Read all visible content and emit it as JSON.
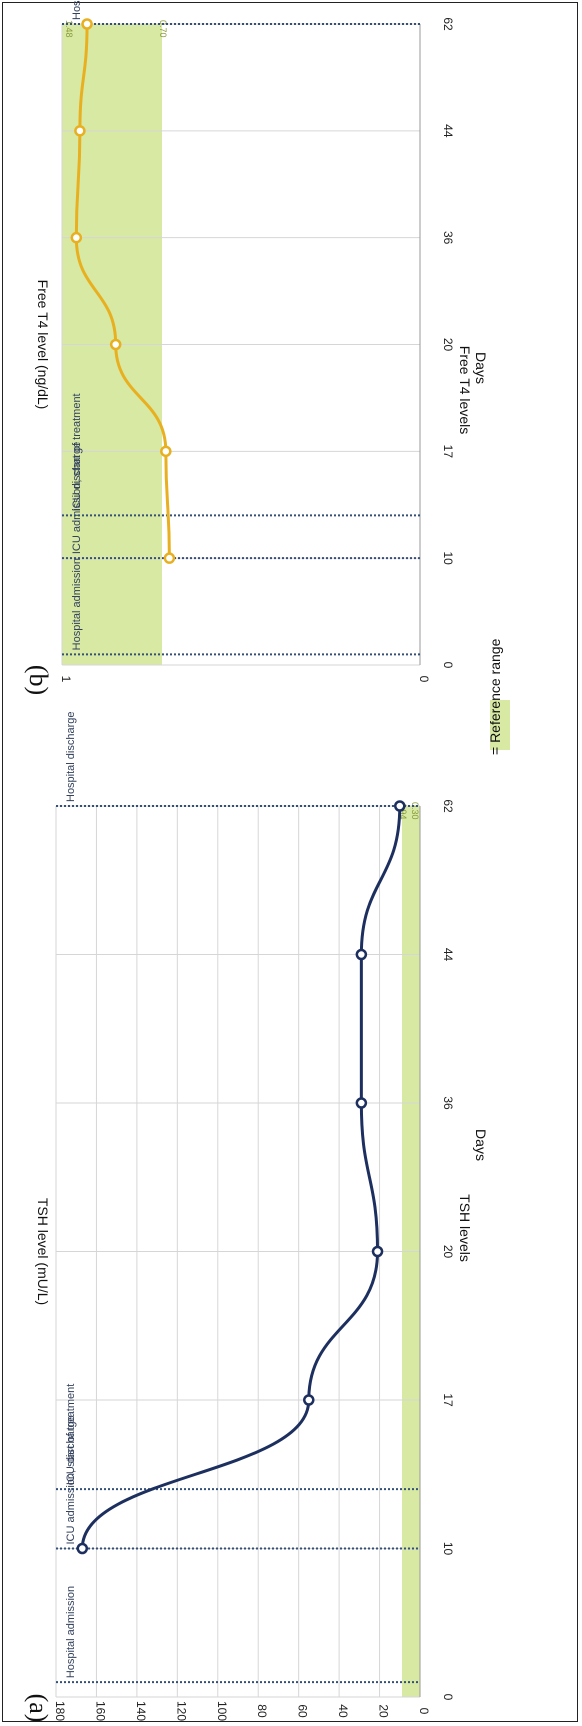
{
  "legend": {
    "label": "= Reference range",
    "color": "#d7e9a3"
  },
  "colors": {
    "tsh_line": "#1c2f5e",
    "ft4_line": "#e8b020",
    "reference": "#d7e9a3",
    "event_line": "#34507a",
    "grid": "#d6d6d6"
  },
  "chart_data": [
    {
      "type": "line",
      "panel_label": "(a)",
      "title": "TSH levels",
      "xlabel": "Days",
      "ylabel": "TSH level (mU/L)",
      "categories": [
        "0",
        "10",
        "17",
        "20",
        "36",
        "44",
        "62"
      ],
      "ylim": [
        0,
        180
      ],
      "yticks": [
        "0",
        "20",
        "40",
        "60",
        "80",
        "100",
        "120",
        "140",
        "160",
        "180"
      ],
      "series": [
        {
          "x": [
            "10",
            "17",
            "20",
            "36",
            "44",
            "62"
          ],
          "values": [
            167,
            55,
            21,
            29,
            29,
            10
          ]
        }
      ],
      "reference_range": {
        "low": 0.3,
        "high": 4.94,
        "low_label": "0.30",
        "high_label": "4.94"
      },
      "events": [
        {
          "label": "Hospital admission",
          "pos": 0.1
        },
        {
          "label": "ICU admission, start of treatment",
          "pos": 1.0
        },
        {
          "label": "ICU discharge",
          "pos": 1.4
        },
        {
          "label": "Hospital discharge",
          "pos": 6.0
        }
      ],
      "grid": true
    },
    {
      "type": "line",
      "panel_label": "(b)",
      "title": "Free T4 levels",
      "xlabel": "Days",
      "ylabel": "Free T4 level (ng/dL)",
      "categories": [
        "0",
        "10",
        "17",
        "20",
        "36",
        "44",
        "62"
      ],
      "ylim": [
        0,
        1
      ],
      "yticks": [
        "0",
        "1"
      ],
      "series": [
        {
          "x": [
            "10",
            "17",
            "20",
            "36",
            "44",
            "62"
          ],
          "values": [
            0.7,
            0.71,
            0.85,
            0.96,
            0.95,
            0.93
          ]
        }
      ],
      "reference_range": {
        "low": 0.7,
        "high": 1.48,
        "low_label": "0.70",
        "high_label": "1.48"
      },
      "events": [
        {
          "label": "Hospital admission",
          "pos": 0.1
        },
        {
          "label": "ICU admission, start of treatment",
          "pos": 1.0
        },
        {
          "label": "ICU discharge",
          "pos": 1.4
        },
        {
          "label": "Hospital discharge",
          "pos": 6.0
        }
      ],
      "grid": true
    }
  ]
}
